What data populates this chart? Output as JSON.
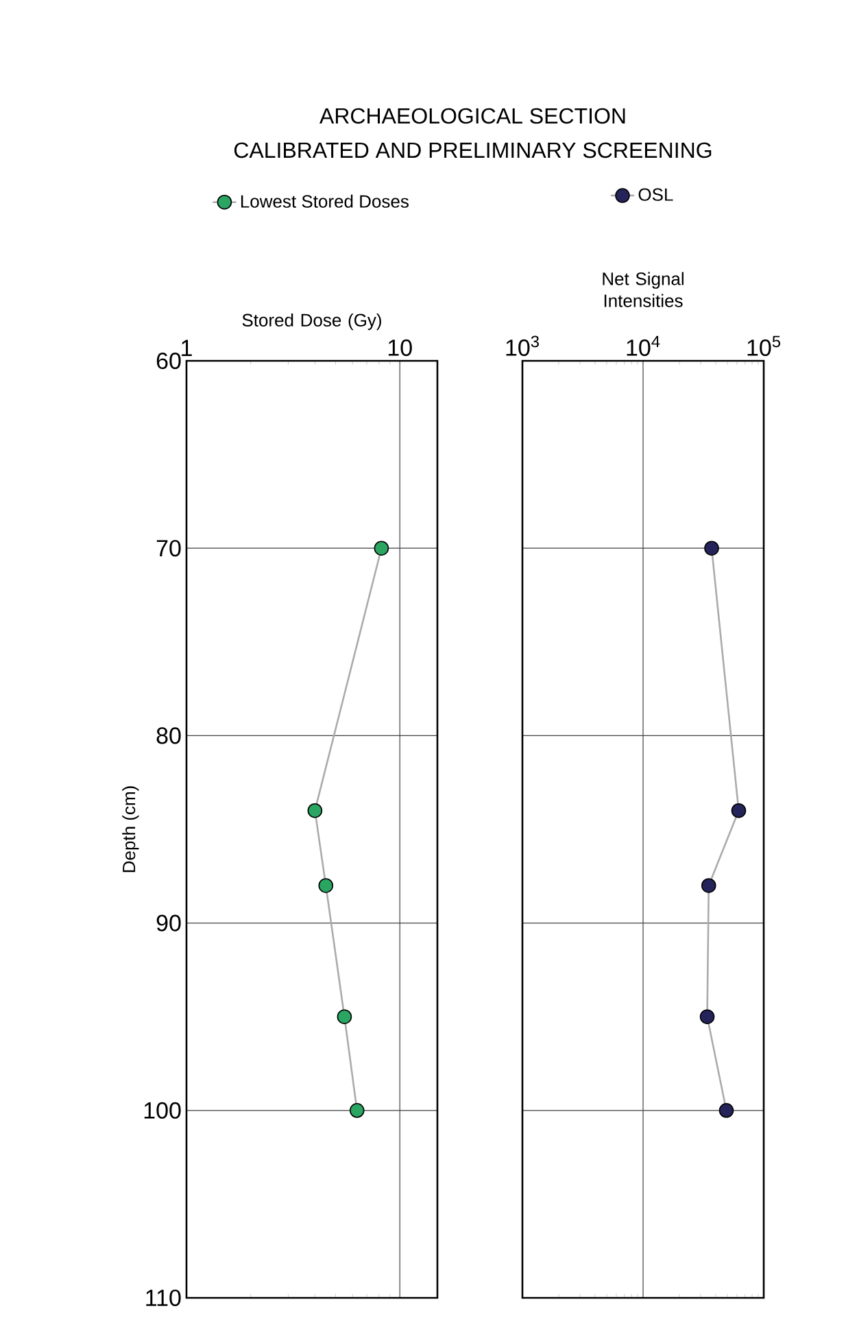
{
  "chart_data": [
    {
      "type": "line",
      "title": "ARCHAEOLOGICAL SECTION",
      "subtitle": "CALIBRATED AND PRELIMINARY SCREENING",
      "xlabel": "Stored Dose (Gy)",
      "ylabel": "Depth (cm)",
      "log": "x",
      "xlim": [
        1,
        15
      ],
      "xticks": [
        1,
        10
      ],
      "ylim": [
        110,
        60
      ],
      "yticks": [
        60,
        70,
        80,
        90,
        100,
        110
      ],
      "grid": true,
      "legend": "top",
      "marker": "circle",
      "line_style": "solid",
      "series": [
        {
          "name": "Lowest Stored Doses",
          "color": "#2aa562",
          "x": [
            8.2,
            4.0,
            4.5,
            5.5,
            6.3
          ],
          "values": [
            70,
            84,
            88,
            95,
            100
          ]
        }
      ]
    },
    {
      "type": "line",
      "xlabel": "Net Signal Intensities",
      "log": "x",
      "xlim": [
        1000,
        100000
      ],
      "xticks": [
        {
          "value": 1000,
          "label": "10$^{3}$"
        },
        {
          "value": 10000,
          "label": "10$^{4}$"
        },
        {
          "value": 100000,
          "label": "10$^{5}$"
        }
      ],
      "ylim": [
        110,
        60
      ],
      "yticks": [
        60,
        70,
        80,
        90,
        100,
        110
      ],
      "tick_labels": "x",
      "grid": true,
      "legend": "top",
      "marker": "circle",
      "line_style": "solid",
      "series": [
        {
          "name": "OSL",
          "color": "#25245a",
          "x": [
            37000,
            62000,
            35000,
            34000,
            49000
          ],
          "values": [
            70,
            84,
            88,
            95,
            100
          ]
        }
      ]
    }
  ]
}
